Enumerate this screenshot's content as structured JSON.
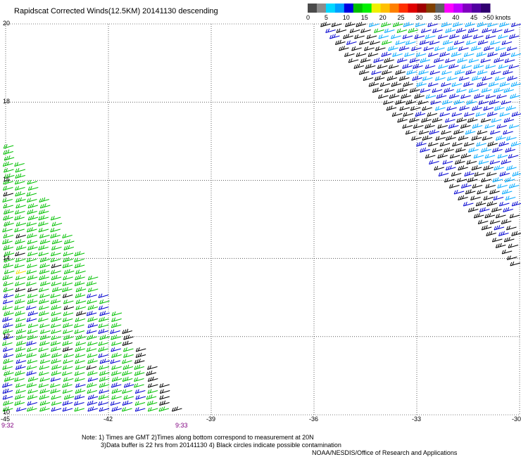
{
  "title": "Rapidscat Corrected Winds(12.5KM) 20141130 descending",
  "colorbar": {
    "labels": [
      "0",
      "5",
      "10",
      "15",
      "20",
      "25",
      "30",
      "35",
      "40",
      "45",
      ">50 knots"
    ],
    "colors": [
      "#4a4a4a",
      "#8c8c8c",
      "#00d8ff",
      "#00a0ff",
      "#0000e0",
      "#00c000",
      "#00f000",
      "#f0f000",
      "#ffc000",
      "#ff8000",
      "#ff3000",
      "#e00000",
      "#a00000",
      "#804000",
      "#606060",
      "#ff00ff",
      "#c000ff",
      "#8000c0",
      "#5000a0",
      "#300070"
    ]
  },
  "map": {
    "lat_labels": [
      "20",
      "18",
      "16",
      "14",
      "12",
      "10"
    ],
    "lon_labels": [
      "-45",
      "-42",
      "-39",
      "-36",
      "-33",
      "-30"
    ],
    "lat_range": [
      10,
      20
    ],
    "lon_range": [
      -45,
      -30
    ],
    "grid": true,
    "pass_times": [
      "9:32",
      "9:33"
    ]
  },
  "wind_colors": {
    "calm": "#000000",
    "light": "#00a8ff",
    "moderate": "#0000d0",
    "fresh": "#00c000",
    "strong": "#f0e000"
  },
  "swaths": [
    {
      "name": "west",
      "edge": "lower-left triangle",
      "dominant": [
        "fresh",
        "moderate"
      ]
    },
    {
      "name": "east",
      "edge": "upper-right triangle",
      "dominant": [
        "light",
        "moderate",
        "calm"
      ]
    }
  ],
  "notes": {
    "line1": "Note: 1) Times are GMT 2)Times along bottom correspond to measurement at 20N",
    "line2": "3)Data buffer is 22 hrs from 20141130 4) Black circles indicate possible contamination",
    "credit": "NOAA/NESDIS/Office of Research and Applications"
  }
}
